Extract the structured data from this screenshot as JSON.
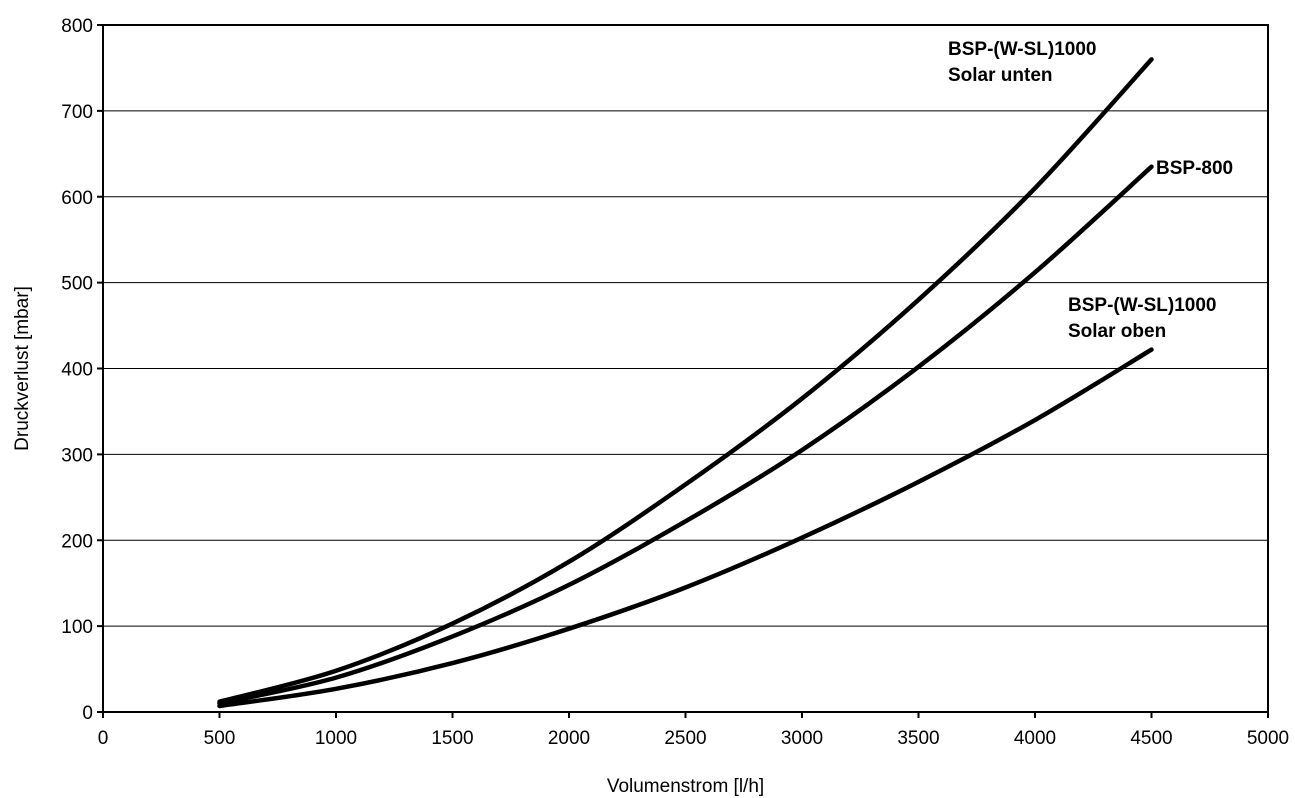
{
  "chart_data": {
    "type": "line",
    "xlabel": "Volumenstrom [l/h]",
    "ylabel": "Druckverlust [mbar]",
    "xlim": [
      0,
      5000
    ],
    "ylim": [
      0,
      800
    ],
    "xticks": [
      0,
      500,
      1000,
      1500,
      2000,
      2500,
      3000,
      3500,
      4000,
      4500,
      5000
    ],
    "yticks": [
      0,
      100,
      200,
      300,
      400,
      500,
      600,
      700,
      800
    ],
    "grid": "horizontal",
    "series": [
      {
        "name": "BSP-(W-SL)1000 Solar unten",
        "label_lines": [
          "BSP-(W-SL)1000",
          "Solar unten"
        ],
        "x": [
          500,
          1000,
          1500,
          2000,
          2500,
          3000,
          3500,
          4000,
          4500
        ],
        "y": [
          12,
          48,
          103,
          175,
          265,
          365,
          480,
          610,
          760
        ]
      },
      {
        "name": "BSP-800",
        "label_lines": [
          "BSP-800"
        ],
        "x": [
          500,
          1000,
          1500,
          2000,
          2500,
          3000,
          3500,
          4000,
          4500
        ],
        "y": [
          10,
          40,
          88,
          148,
          222,
          305,
          402,
          512,
          635
        ]
      },
      {
        "name": "BSP-(W-SL)1000 Solar oben",
        "label_lines": [
          "BSP-(W-SL)1000",
          "Solar oben"
        ],
        "x": [
          500,
          1000,
          1500,
          2000,
          2500,
          3000,
          3500,
          4000,
          4500
        ],
        "y": [
          7,
          27,
          57,
          97,
          145,
          203,
          268,
          340,
          422
        ]
      }
    ]
  }
}
